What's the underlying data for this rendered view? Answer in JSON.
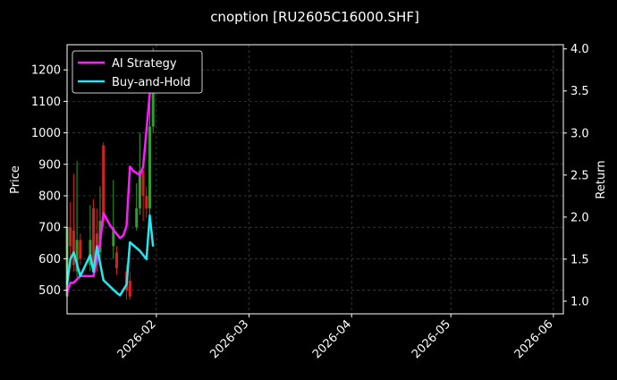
{
  "chart_data": {
    "type": "line",
    "title": "cnoption [RU2605C16000.SHF]",
    "ylabel": "Price",
    "y2label": "Return",
    "ylim": [
      425,
      1280
    ],
    "y2lim": [
      0.85,
      4.05
    ],
    "xlim": [
      "2026-01-05",
      "2026-06-04"
    ],
    "x_ticks": [
      "2026-02",
      "2026-03",
      "2026-04",
      "2026-05",
      "2026-06"
    ],
    "y_ticks": [
      500,
      600,
      700,
      800,
      900,
      1000,
      1100,
      1200
    ],
    "y2_ticks": [
      "1.0",
      "1.5",
      "2.0",
      "2.5",
      "3.0",
      "3.5",
      "4.0"
    ],
    "grid": true,
    "legend_position": "top-left",
    "colors": {
      "background": "#000000",
      "up": "#2e9e2e",
      "down": "#d62020",
      "strategy": "#ff1aff",
      "buyhold": "#22e8f0",
      "grid": "#555555"
    },
    "candles": [
      {
        "date": "2026-01-05",
        "open": 480,
        "close": 700,
        "low": 465,
        "high": 790
      },
      {
        "date": "2026-01-06",
        "open": 700,
        "close": 640,
        "low": 600,
        "high": 780
      },
      {
        "date": "2026-01-07",
        "open": 690,
        "close": 580,
        "low": 560,
        "high": 870
      },
      {
        "date": "2026-01-08",
        "open": 560,
        "close": 660,
        "low": 540,
        "high": 910
      },
      {
        "date": "2026-01-09",
        "open": 660,
        "close": 600,
        "low": 580,
        "high": 680
      },
      {
        "date": "2026-01-12",
        "open": 580,
        "close": 660,
        "low": 560,
        "high": 770
      },
      {
        "date": "2026-01-13",
        "open": 760,
        "close": 560,
        "low": 540,
        "high": 790
      },
      {
        "date": "2026-01-14",
        "open": 680,
        "close": 580,
        "low": 560,
        "high": 760
      },
      {
        "date": "2026-01-15",
        "open": 620,
        "close": 720,
        "low": 600,
        "high": 830
      },
      {
        "date": "2026-01-16",
        "open": 960,
        "close": 720,
        "low": 700,
        "high": 970
      },
      {
        "date": "2026-01-19",
        "open": 640,
        "close": 700,
        "low": 600,
        "high": 850
      },
      {
        "date": "2026-01-20",
        "open": 620,
        "close": 570,
        "low": 550,
        "high": 640
      },
      {
        "date": "2026-01-23",
        "open": 560,
        "close": 500,
        "low": 470,
        "high": 580
      },
      {
        "date": "2026-01-24",
        "open": 530,
        "close": 480,
        "low": 470,
        "high": 560
      },
      {
        "date": "2026-01-26",
        "open": 700,
        "close": 760,
        "low": 690,
        "high": 840
      },
      {
        "date": "2026-01-27",
        "open": 760,
        "close": 880,
        "low": 740,
        "high": 1000
      },
      {
        "date": "2026-01-28",
        "open": 880,
        "close": 800,
        "low": 720,
        "high": 920
      },
      {
        "date": "2026-01-29",
        "open": 800,
        "close": 760,
        "low": 730,
        "high": 830
      },
      {
        "date": "2026-01-30",
        "open": 760,
        "close": 1020,
        "low": 740,
        "high": 1100
      },
      {
        "date": "2026-01-31",
        "open": 1020,
        "close": 1150,
        "low": 1000,
        "high": 1270
      }
    ],
    "series": [
      {
        "name": "AI Strategy",
        "axis": "right",
        "x": [
          "2026-01-05",
          "2026-01-06",
          "2026-01-07",
          "2026-01-08",
          "2026-01-09",
          "2026-01-12",
          "2026-01-13",
          "2026-01-15",
          "2026-01-16",
          "2026-01-18",
          "2026-01-20",
          "2026-01-21",
          "2026-01-22",
          "2026-01-23",
          "2026-01-24",
          "2026-01-25",
          "2026-01-27",
          "2026-01-28",
          "2026-01-31"
        ],
        "values": [
          1.1,
          1.22,
          1.22,
          1.26,
          1.3,
          1.3,
          1.3,
          1.7,
          2.05,
          1.9,
          1.8,
          1.75,
          1.78,
          1.9,
          2.6,
          2.55,
          2.5,
          2.6,
          3.9
        ]
      },
      {
        "name": "Buy-and-Hold",
        "axis": "right",
        "x": [
          "2026-01-05",
          "2026-01-06",
          "2026-01-07",
          "2026-01-09",
          "2026-01-12",
          "2026-01-13",
          "2026-01-14",
          "2026-01-16",
          "2026-01-20",
          "2026-01-21",
          "2026-01-23",
          "2026-01-24",
          "2026-01-27",
          "2026-01-29",
          "2026-01-30",
          "2026-01-31"
        ],
        "values": [
          1.2,
          1.5,
          1.58,
          1.3,
          1.55,
          1.35,
          1.65,
          1.25,
          1.1,
          1.07,
          1.2,
          1.7,
          1.6,
          1.5,
          2.02,
          1.65
        ]
      }
    ]
  }
}
